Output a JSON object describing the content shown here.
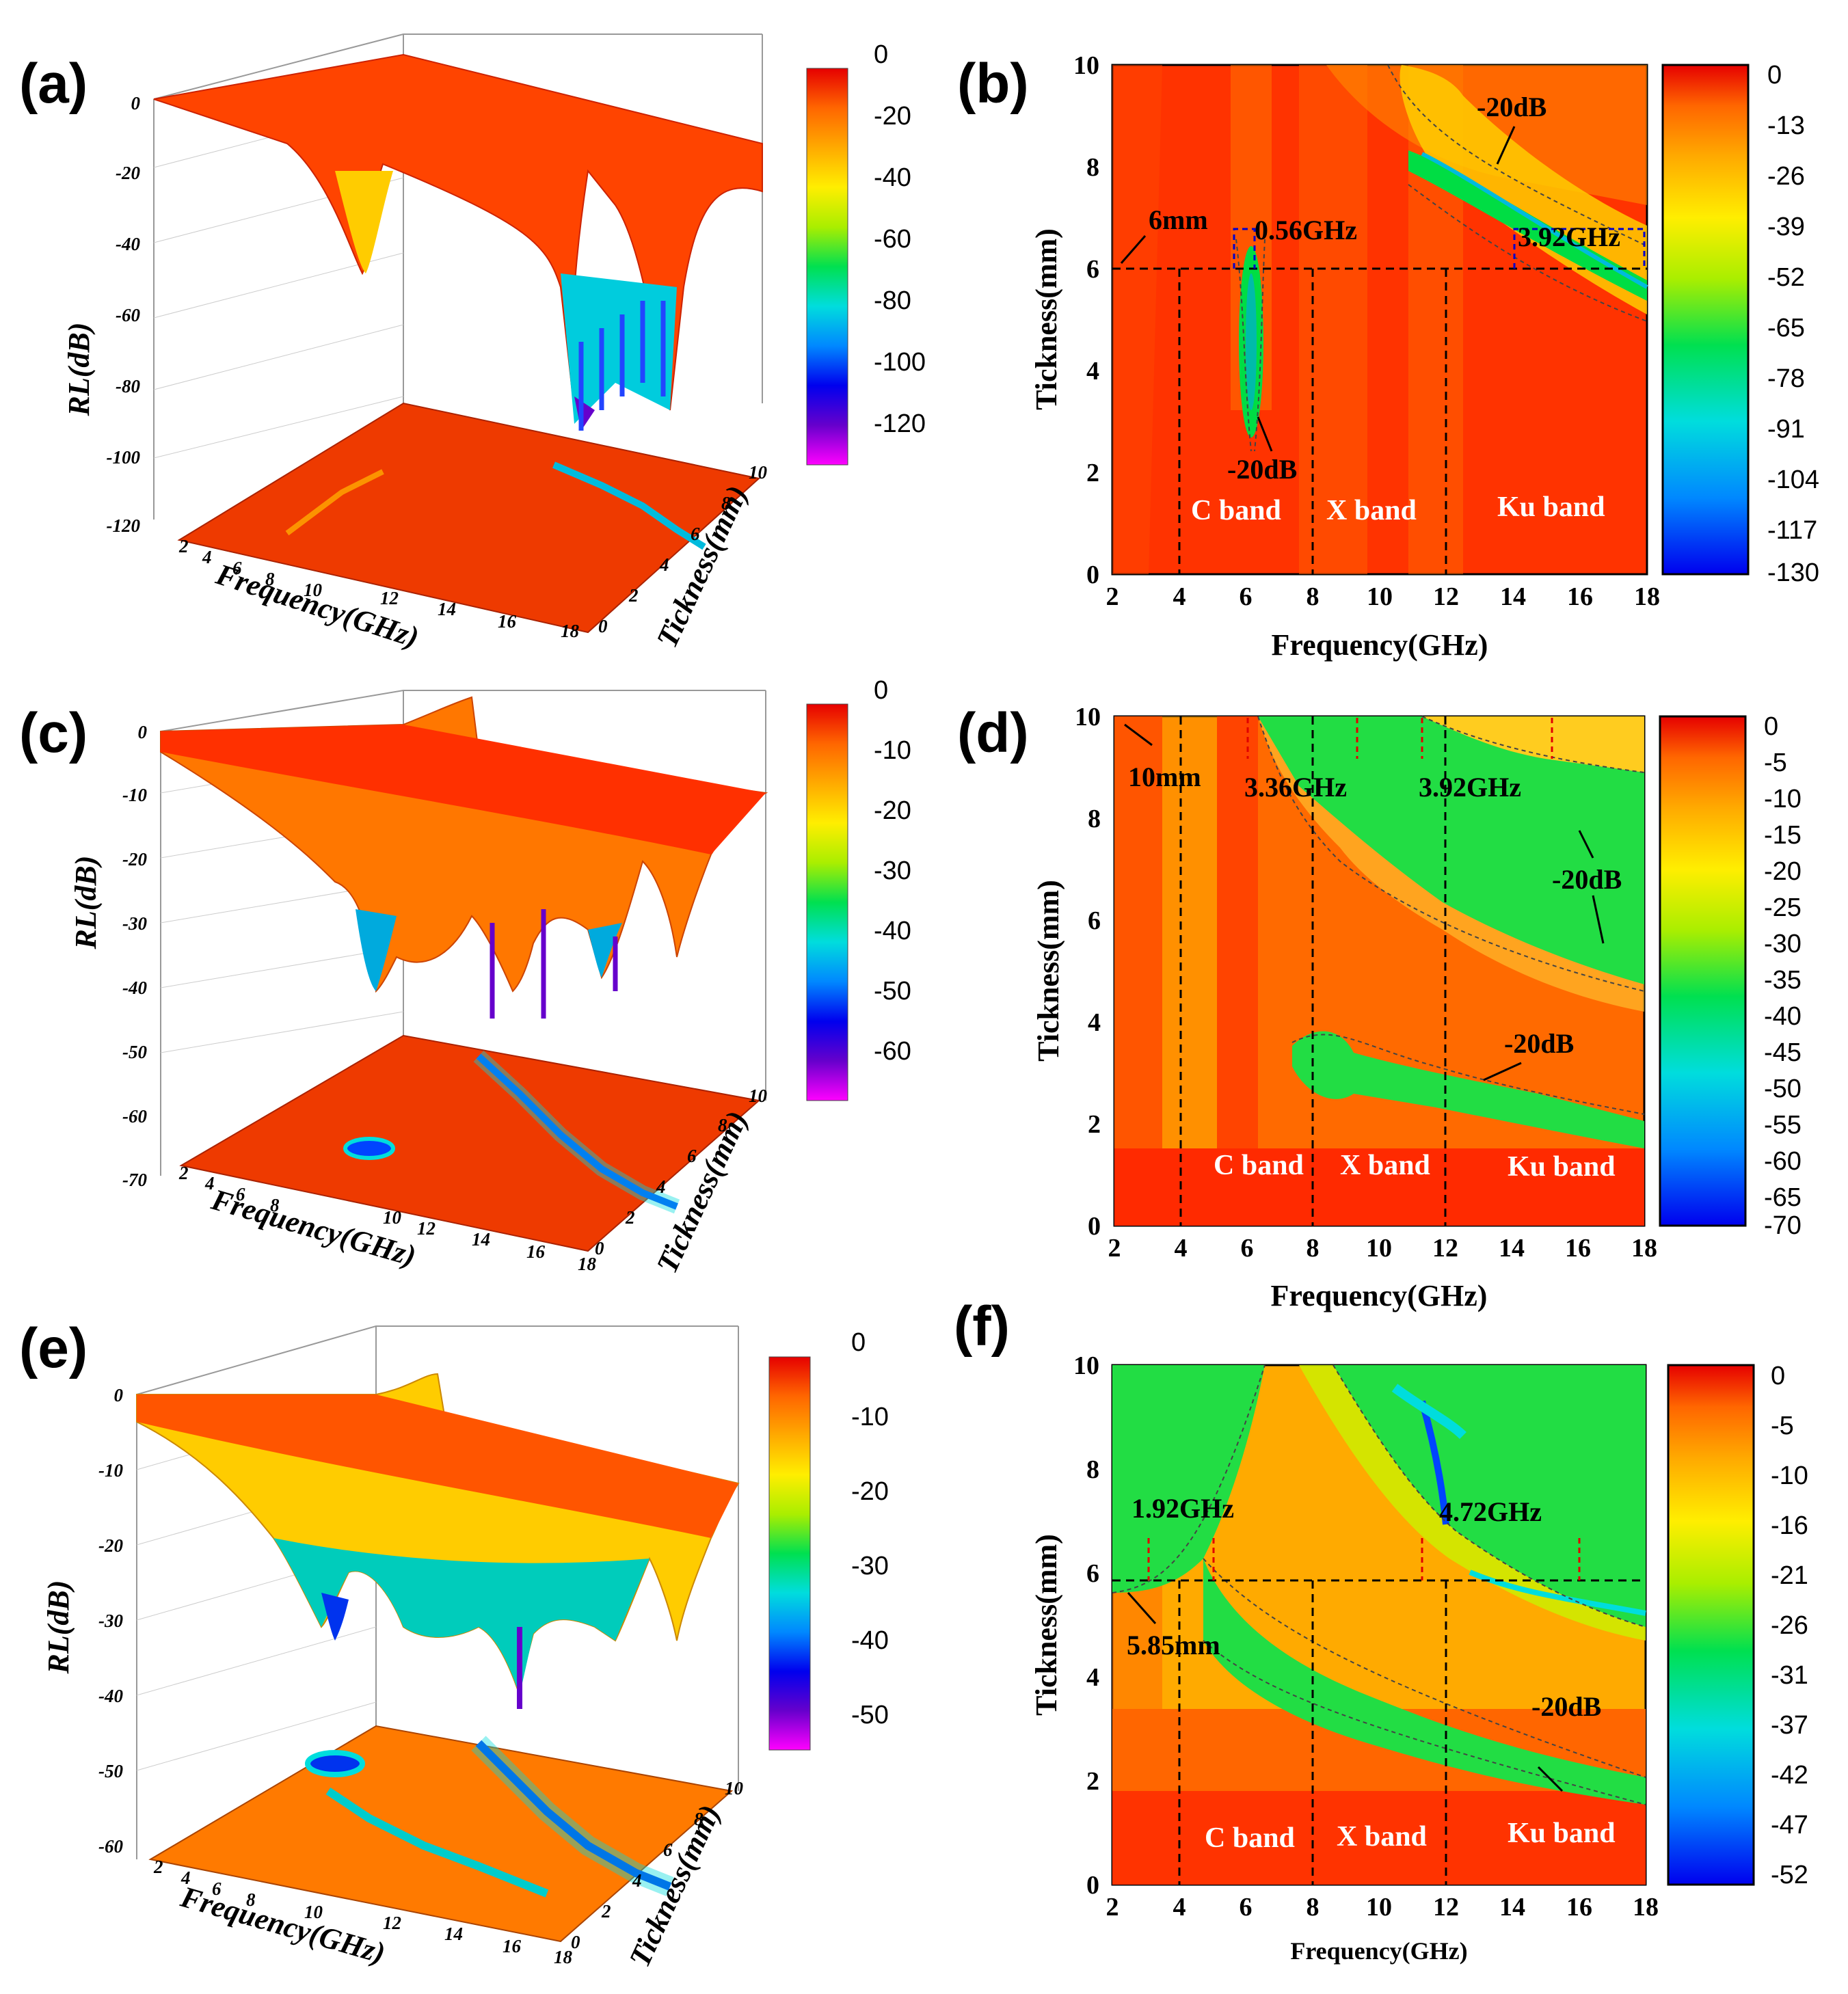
{
  "colors": {
    "cmap": [
      "#ff00ff",
      "#6600cc",
      "#0000ee",
      "#0088ff",
      "#00dddd",
      "#00e050",
      "#aaee00",
      "#ffee00",
      "#ffaa00",
      "#ff6600",
      "#e60000"
    ],
    "marker_red": "#e00000",
    "marker_blue": "#0000cc",
    "band_label": "#ffffff"
  },
  "chart_data": [
    {
      "panel": "(a)",
      "type": "surface3d",
      "xlabel": "Frequency(GHz)",
      "ylabel": "Tickness(mm)",
      "zlabel": "RL(dB)",
      "xticks": [
        "2",
        "4",
        "6",
        "8",
        "10",
        "12",
        "14",
        "16",
        "18"
      ],
      "yticks": [
        "0",
        "2",
        "4",
        "6",
        "8",
        "10"
      ],
      "zticks": [
        "0",
        "-20",
        "-40",
        "-60",
        "-80",
        "-100",
        "-120"
      ],
      "zlim": [
        -120,
        0
      ],
      "cmin": -130,
      "colorbar": {
        "ticks": [
          "0",
          "-20",
          "-40",
          "-60",
          "-80",
          "-100",
          "-120"
        ]
      },
      "dips": [
        {
          "f": 5.9,
          "t": 4.5,
          "depth": -48
        },
        {
          "f": 13.5,
          "t": 8.0,
          "depth": -125
        },
        {
          "f": 15.5,
          "t": 6.0,
          "depth": -90
        }
      ]
    },
    {
      "panel": "(b)",
      "type": "heatmap",
      "xlabel": "Frequency(GHz)",
      "ylabel": "Tickness(mm)",
      "xticks": [
        "2",
        "4",
        "6",
        "8",
        "10",
        "12",
        "14",
        "16",
        "18"
      ],
      "yticks": [
        "0",
        "2",
        "4",
        "6",
        "8",
        "10"
      ],
      "xlim": [
        2,
        18
      ],
      "ylim": [
        0,
        10
      ],
      "cmin": -130,
      "colorbar": {
        "ticks": [
          "0",
          "-13",
          "-26",
          "-39",
          "-52",
          "-65",
          "-78",
          "-91",
          "-104",
          "-117",
          "-130"
        ]
      },
      "bands": [
        "C band",
        "X band",
        "Ku band"
      ],
      "thickness_line": 6,
      "annotations": [
        "6mm",
        "0.56GHz",
        "3.92GHz",
        "-20dB",
        "-20dB"
      ]
    },
    {
      "panel": "(c)",
      "type": "surface3d",
      "xlabel": "Frequency(GHz)",
      "ylabel": "Tickness(mm)",
      "zlabel": "RL(dB)",
      "xticks": [
        "2",
        "4",
        "6",
        "8",
        "10",
        "12",
        "14",
        "16",
        "18"
      ],
      "yticks": [
        "0",
        "2",
        "4",
        "6",
        "8",
        "10"
      ],
      "zticks": [
        "0",
        "-10",
        "-20",
        "-30",
        "-40",
        "-50",
        "-60",
        "-70"
      ],
      "zlim": [
        -70,
        0
      ],
      "cmin": -70,
      "colorbar": {
        "ticks": [
          "0",
          "-10",
          "-20",
          "-30",
          "-40",
          "-50",
          "-60"
        ]
      },
      "dips": [
        {
          "f": 7.2,
          "t": 3.0,
          "depth": -40
        },
        {
          "f": 10.8,
          "t": 3.0,
          "depth": -50
        },
        {
          "f": 12.8,
          "t": 3.0,
          "depth": -55
        },
        {
          "f": 13.5,
          "t": 8.5,
          "depth": -45
        }
      ]
    },
    {
      "panel": "(d)",
      "type": "heatmap",
      "xlabel": "Frequency(GHz)",
      "ylabel": "Tickness(mm)",
      "xticks": [
        "2",
        "4",
        "6",
        "8",
        "10",
        "12",
        "14",
        "16",
        "18"
      ],
      "yticks": [
        "0",
        "2",
        "4",
        "6",
        "8",
        "10"
      ],
      "xlim": [
        2,
        18
      ],
      "ylim": [
        0,
        10
      ],
      "cmin": -70,
      "colorbar": {
        "ticks": [
          "0",
          "-5",
          "-10",
          "-15",
          "-20",
          "-25",
          "-30",
          "-35",
          "-40",
          "-45",
          "-50",
          "-55",
          "-60",
          "-65",
          "-70"
        ]
      },
      "bands": [
        "C band",
        "X band",
        "Ku band"
      ],
      "annotations": [
        "10mm",
        "3.36GHz",
        "3.92GHz",
        "-20dB",
        "-20dB"
      ]
    },
    {
      "panel": "(e)",
      "type": "surface3d",
      "xlabel": "Frequency(GHz)",
      "ylabel": "Tickness(mm)",
      "zlabel": "RL(dB)",
      "xticks": [
        "2",
        "4",
        "6",
        "8",
        "10",
        "12",
        "14",
        "16",
        "18"
      ],
      "yticks": [
        "0",
        "2",
        "4",
        "6",
        "8",
        "10"
      ],
      "zticks": [
        "0",
        "-10",
        "-20",
        "-30",
        "-40",
        "-50",
        "-60"
      ],
      "zlim": [
        -60,
        0
      ],
      "cmin": -52,
      "colorbar": {
        "ticks": [
          "0",
          "-10",
          "-20",
          "-30",
          "-40",
          "-50"
        ]
      },
      "dips": [
        {
          "f": 10.0,
          "t": 3.5,
          "depth": -35
        },
        {
          "f": 13.2,
          "t": 6.2,
          "depth": -52
        },
        {
          "f": 14.5,
          "t": 7.5,
          "depth": -30
        }
      ]
    },
    {
      "panel": "(f)",
      "type": "heatmap",
      "xlabel": "Frequency(GHz)",
      "ylabel": "Tickness(mm)",
      "xticks": [
        "2",
        "4",
        "6",
        "8",
        "10",
        "12",
        "14",
        "16",
        "18"
      ],
      "yticks": [
        "0",
        "2",
        "4",
        "6",
        "8",
        "10"
      ],
      "xlim": [
        2,
        18
      ],
      "ylim": [
        0,
        10
      ],
      "cmin": -52,
      "colorbar": {
        "ticks": [
          "0",
          "-5",
          "-10",
          "-16",
          "-21",
          "-26",
          "-31",
          "-37",
          "-42",
          "-47",
          "-52"
        ]
      },
      "bands": [
        "C band",
        "X band",
        "Ku band"
      ],
      "thickness_line": 5.85,
      "annotations": [
        "1.92GHz",
        "4.72GHz",
        "5.85mm",
        "-20dB"
      ]
    }
  ]
}
